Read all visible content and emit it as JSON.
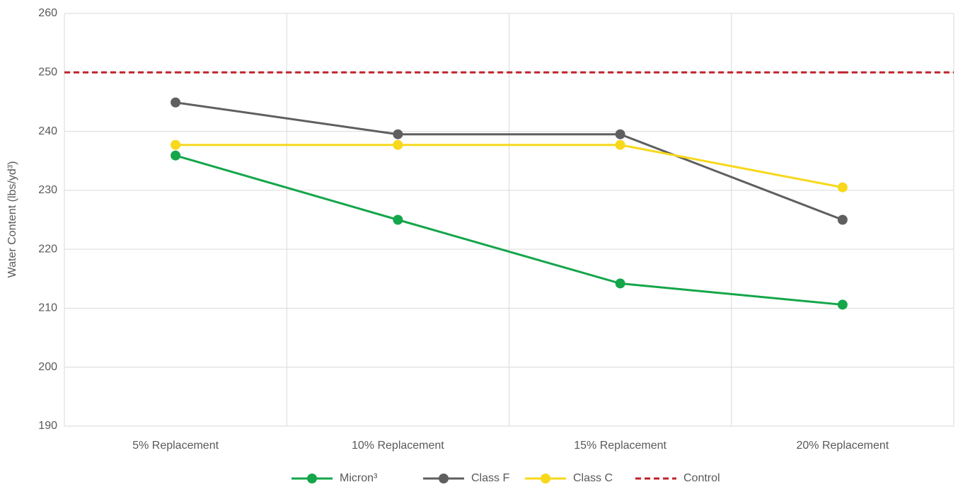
{
  "chart_data": {
    "type": "line",
    "y_label": "Water Content (lbs/yd³)",
    "categories": [
      "5% Replacement",
      "10% Replacement",
      "15% Replacement",
      "20% Replacement"
    ],
    "series": [
      {
        "name": "Micron³",
        "color": "#14a64a",
        "style": "solid",
        "markers": true,
        "values": [
          235.9,
          225.0,
          214.2,
          210.6
        ]
      },
      {
        "name": "Class F",
        "color": "#5f5f5f",
        "style": "solid",
        "markers": true,
        "values": [
          244.9,
          239.5,
          239.5,
          225.0
        ]
      },
      {
        "name": "Class C",
        "color": "#f7d81c",
        "style": "solid",
        "markers": true,
        "values": [
          237.7,
          237.7,
          237.7,
          230.5
        ]
      },
      {
        "name": "Control",
        "color": "#c0222c",
        "style": "dashed",
        "markers": false,
        "values": [
          250,
          250,
          250,
          250
        ]
      }
    ],
    "ylim": [
      190,
      260
    ],
    "yticks": [
      190,
      200,
      210,
      220,
      230,
      240,
      250,
      260
    ],
    "grid": true,
    "legend": "bottom"
  }
}
